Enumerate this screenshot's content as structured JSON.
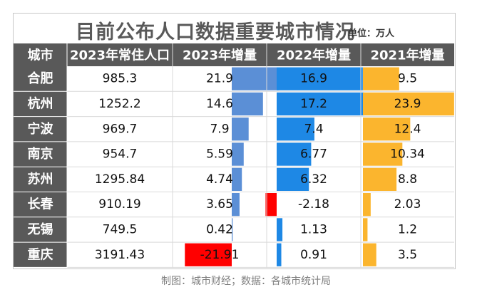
{
  "title": "目前公布人口数据重要城市情况",
  "unit": "单位：万人",
  "footer": "制图：城市财经；数据：各城市统计局",
  "colors": {
    "header_bg": "#595959",
    "header_text": "#ffffff",
    "bar_2023": "#5b8fd6",
    "bar_2023_negative": "#ff0000",
    "bar_2022": "#1e88e5",
    "bar_2022_negative": "#ff0000",
    "bar_2021": "#fbb52e",
    "grid": "#d9d9d9"
  },
  "chart_data": {
    "type": "table",
    "columns": [
      "城市",
      "2023年常住人口",
      "2023年增量",
      "2022年增量",
      "2021年增量"
    ],
    "rows": [
      {
        "city": "合肥",
        "pop": "985.3",
        "inc2023": "21.9",
        "inc2022": "16.9",
        "inc2021": "9.5"
      },
      {
        "city": "杭州",
        "pop": "1252.2",
        "inc2023": "14.6",
        "inc2022": "17.2",
        "inc2021": "23.9"
      },
      {
        "city": "宁波",
        "pop": "969.7",
        "inc2023": "7.9",
        "inc2022": "7.4",
        "inc2021": "12.4"
      },
      {
        "city": "南京",
        "pop": "954.7",
        "inc2023": "5.59",
        "inc2022": "6.77",
        "inc2021": "10.34"
      },
      {
        "city": "苏州",
        "pop": "1295.84",
        "inc2023": "4.74",
        "inc2022": "6.32",
        "inc2021": "8.8"
      },
      {
        "city": "长春",
        "pop": "910.19",
        "inc2023": "3.65",
        "inc2022": "-2.18",
        "inc2021": "2.03"
      },
      {
        "city": "无锡",
        "pop": "749.5",
        "inc2023": "0.42",
        "inc2022": "1.13",
        "inc2021": "1.2"
      },
      {
        "city": "重庆",
        "pop": "3191.43",
        "inc2023": "-21.91",
        "inc2022": "0.91",
        "inc2021": "3.5"
      }
    ]
  }
}
